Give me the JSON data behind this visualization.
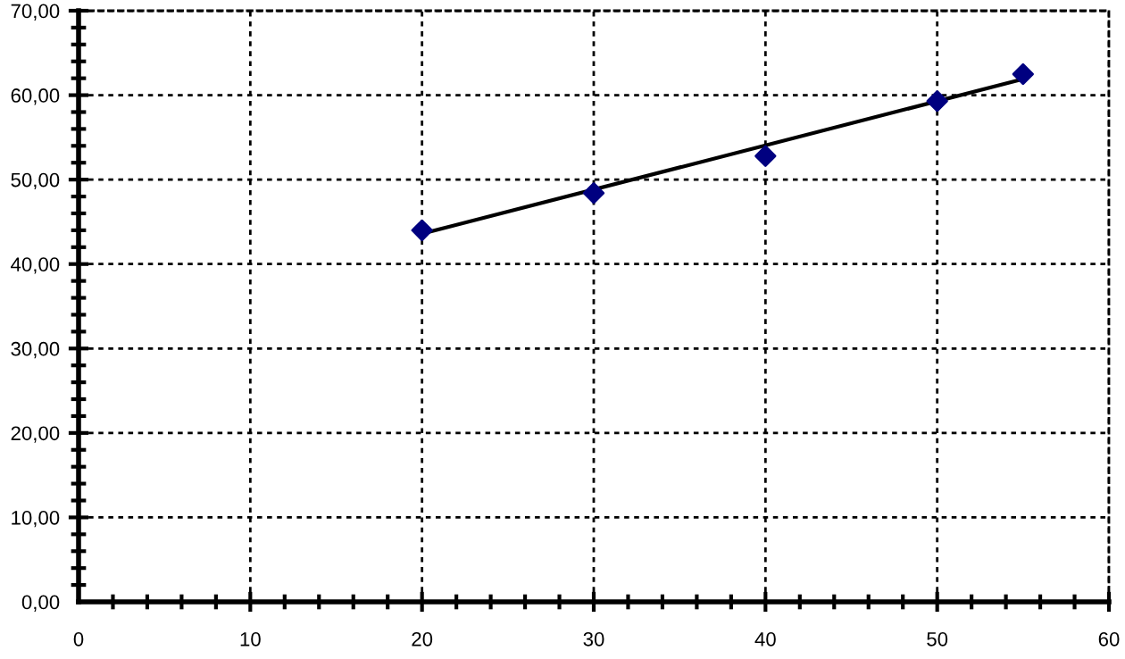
{
  "chart_data": {
    "type": "scatter",
    "series": [
      {
        "color": "#000080",
        "marker": "diamond",
        "x": [
          20,
          30,
          40,
          50,
          55
        ],
        "values": [
          44.0,
          48.4,
          52.8,
          59.3,
          62.5
        ]
      },
      {
        "type": "line",
        "color": "#000000",
        "marker": "none",
        "x": [
          20,
          55
        ],
        "values": [
          43.6,
          61.9
        ]
      }
    ],
    "xlim": [
      0,
      60
    ],
    "xticks": [
      0,
      10,
      20,
      30,
      40,
      50,
      60
    ],
    "ylim": [
      0,
      70
    ],
    "yticks": [
      {
        "value": 0,
        "label": "0,00"
      },
      {
        "value": 10,
        "label": "10,00"
      },
      {
        "value": 20,
        "label": "20,00"
      },
      {
        "value": 30,
        "label": "30,00"
      },
      {
        "value": 40,
        "label": "40,00"
      },
      {
        "value": 50,
        "label": "50,00"
      },
      {
        "value": 60,
        "label": "60,00"
      },
      {
        "value": 70,
        "label": "70,00"
      }
    ],
    "grid": true,
    "line_style": "solid"
  }
}
